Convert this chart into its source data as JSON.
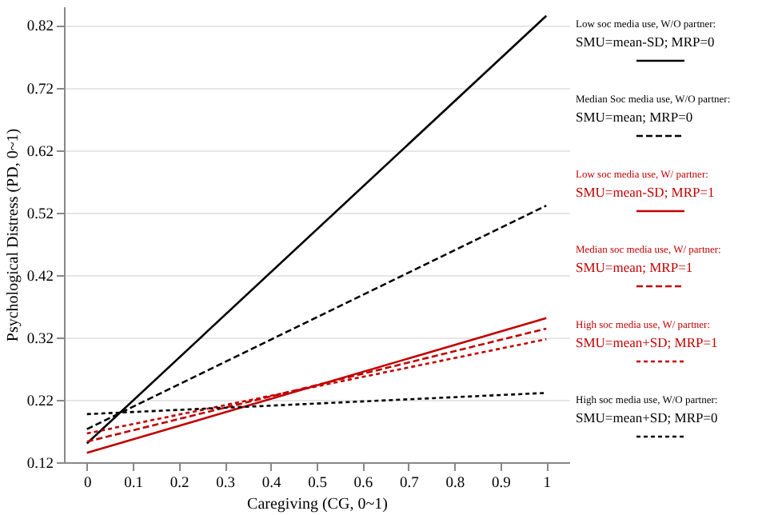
{
  "chart_data": {
    "type": "line",
    "xlabel": "Caregiving (CG, 0~1)",
    "ylabel": "Psychological Distress (PD, 0~1)",
    "x": [
      0,
      1
    ],
    "xlim": [
      -0.05,
      1.05
    ],
    "xticks": [
      0,
      0.1,
      0.2,
      0.3,
      0.4,
      0.5,
      0.6,
      0.7,
      0.8,
      0.9,
      1
    ],
    "ylim": [
      0.12,
      0.85
    ],
    "yticks": [
      0.12,
      0.22,
      0.32,
      0.42,
      0.52,
      0.62,
      0.72,
      0.82
    ],
    "grid": "y",
    "legend": "right",
    "marker": "none",
    "series": [
      {
        "name": "Low soc media use, W/O partner:\nSMU=mean-SD; MRP=0",
        "color": "#000000",
        "line_style": "solid",
        "values": [
          0.15,
          0.835
        ]
      },
      {
        "name": "Median Soc media use, W/O partner:\nSMU=mean; MRP=0",
        "color": "#000000",
        "line_style": "dashed",
        "values": [
          0.173,
          0.531
        ]
      },
      {
        "name": "Low soc media use, W/ partner:\nSMU=mean-SD; MRP=1",
        "color": "#c00000",
        "line_style": "solid",
        "values": [
          0.135,
          0.351
        ]
      },
      {
        "name": "Median soc media use, W/ partner:\nSMU=mean; MRP=1",
        "color": "#c00000",
        "line_style": "dashed",
        "values": [
          0.153,
          0.334
        ]
      },
      {
        "name": "High soc media use, W/ partner:\nSMU=mean+SD; MRP=1",
        "color": "#c00000",
        "line_style": "dotted",
        "values": [
          0.166,
          0.317
        ]
      },
      {
        "name": "High soc media use, W/O partner:\nSMU=mean+SD; MRP=0",
        "color": "#000000",
        "line_style": "dotted",
        "values": [
          0.197,
          0.231
        ]
      }
    ]
  }
}
